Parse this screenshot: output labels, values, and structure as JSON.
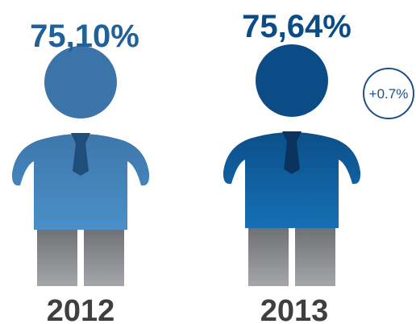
{
  "items": [
    {
      "value_label": "75,10%",
      "year": "2012"
    },
    {
      "value_label": "75,64%",
      "year": "2013"
    }
  ],
  "change": "+0.7%"
}
